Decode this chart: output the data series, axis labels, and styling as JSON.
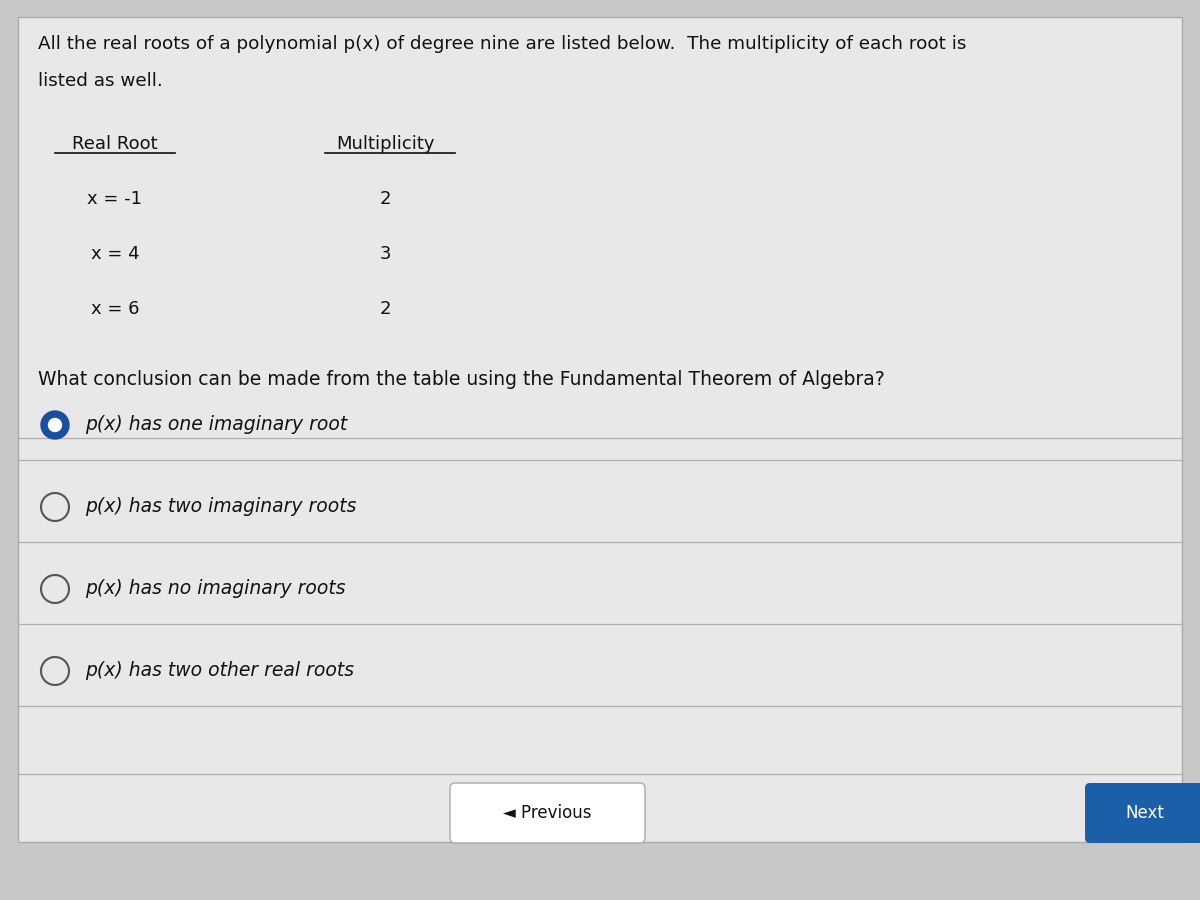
{
  "bg_color": "#c8c8c8",
  "card_color": "#e8e8e8",
  "title_line1": "All the real roots of a polynomial p(x) of degree nine are listed below.  The multiplicity of each root is",
  "title_line2": "listed as well.",
  "col1_header": "Real Root",
  "col2_header": "Multiplicity",
  "roots": [
    "x = -1",
    "x = 4",
    "x = 6"
  ],
  "multiplicities": [
    "2",
    "3",
    "2"
  ],
  "question": "What conclusion can be made from the table using the Fundamental Theorem of Algebra?",
  "options": [
    "p(x) has one imaginary root",
    "p(x) has two imaginary roots",
    "p(x) has no imaginary roots",
    "p(x) has two other real roots"
  ],
  "selected_option": 0,
  "prev_button_text": "◄ Previous",
  "next_button_text": "Next",
  "selected_color": "#1a4fa0",
  "divider_color": "#b0b0b0",
  "text_color": "#111111",
  "underline_color": "#111111"
}
